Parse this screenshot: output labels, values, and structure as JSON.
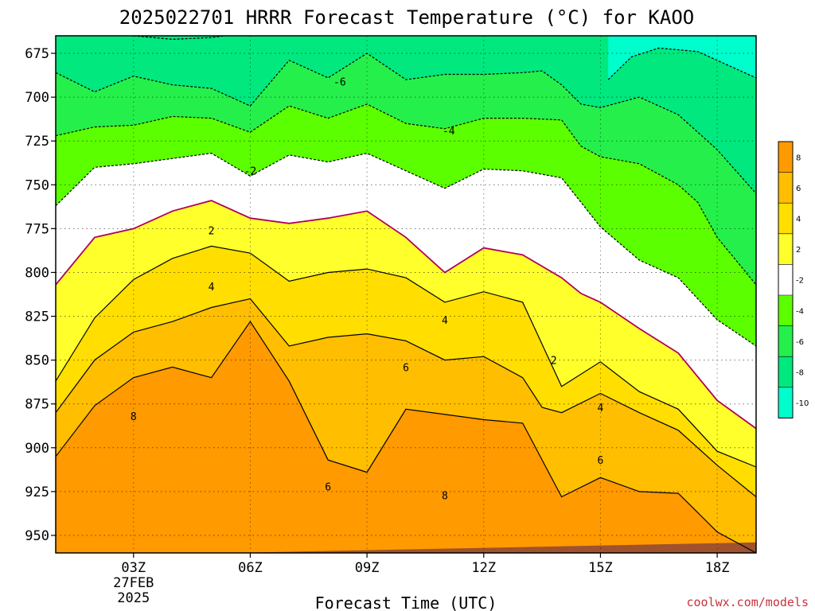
{
  "chart_data": {
    "type": "heatmap",
    "title": "2025022701 HRRR Forecast Temperature (°C) for KAOO",
    "xlabel": "Forecast Time (UTC)",
    "ylabel": "",
    "x_unit": "UTC hour",
    "xlim": [
      1,
      19
    ],
    "ylim_hPa": [
      960,
      665
    ],
    "y_scale": "pressure (inverted)",
    "x_ticks": [
      {
        "x": 3,
        "label": "03Z",
        "sub": [
          "27FEB",
          "2025"
        ]
      },
      {
        "x": 6,
        "label": "06Z"
      },
      {
        "x": 9,
        "label": "09Z"
      },
      {
        "x": 12,
        "label": "12Z"
      },
      {
        "x": 15,
        "label": "15Z"
      },
      {
        "x": 18,
        "label": "18Z"
      }
    ],
    "y_ticks": [
      675,
      700,
      725,
      750,
      775,
      800,
      825,
      850,
      875,
      900,
      925,
      950
    ],
    "grid": true,
    "contour_levels": [
      -10,
      -8,
      -6,
      -4,
      -2,
      2,
      4,
      6,
      8
    ],
    "isotherms": [
      {
        "level": -10,
        "points": [
          [
            15.2,
            690
          ],
          [
            15.8,
            677
          ],
          [
            16.5,
            672
          ],
          [
            17.5,
            674
          ],
          [
            18.5,
            684
          ],
          [
            19,
            689
          ]
        ]
      },
      {
        "level": -8,
        "points": [
          [
            3,
            665
          ],
          [
            4,
            667
          ],
          [
            5,
            666
          ],
          [
            6,
            663
          ]
        ]
      },
      {
        "level": -6,
        "points": [
          [
            1,
            686
          ],
          [
            2,
            697
          ],
          [
            3,
            688
          ],
          [
            4,
            693
          ],
          [
            5,
            695
          ],
          [
            6,
            705
          ],
          [
            7,
            679
          ],
          [
            8,
            689
          ],
          [
            9,
            675
          ],
          [
            10,
            690
          ],
          [
            11,
            687
          ],
          [
            12,
            687
          ],
          [
            13,
            686
          ],
          [
            13.5,
            685
          ],
          [
            14,
            693
          ],
          [
            14.5,
            704
          ],
          [
            15,
            706
          ],
          [
            16,
            700
          ],
          [
            17,
            710
          ],
          [
            18,
            730
          ],
          [
            19,
            755
          ]
        ]
      },
      {
        "level": -4,
        "points": [
          [
            1,
            722
          ],
          [
            2,
            717
          ],
          [
            3,
            716
          ],
          [
            4,
            711
          ],
          [
            5,
            712
          ],
          [
            6,
            720
          ],
          [
            7,
            705
          ],
          [
            8,
            712
          ],
          [
            9,
            704
          ],
          [
            10,
            715
          ],
          [
            11,
            718
          ],
          [
            12,
            712
          ],
          [
            13,
            712
          ],
          [
            14,
            713
          ],
          [
            14.5,
            728
          ],
          [
            15,
            734
          ],
          [
            16,
            738
          ],
          [
            17,
            750
          ],
          [
            17.5,
            760
          ],
          [
            18,
            780
          ],
          [
            19,
            807
          ]
        ]
      },
      {
        "level": -2,
        "points": [
          [
            1,
            762
          ],
          [
            2,
            740
          ],
          [
            3,
            738
          ],
          [
            4,
            735
          ],
          [
            5,
            732
          ],
          [
            6,
            745
          ],
          [
            7,
            733
          ],
          [
            8,
            737
          ],
          [
            9,
            732
          ],
          [
            10,
            742
          ],
          [
            11,
            752
          ],
          [
            12,
            741
          ],
          [
            13,
            742
          ],
          [
            14,
            746
          ],
          [
            15,
            774
          ],
          [
            16,
            793
          ],
          [
            17,
            803
          ],
          [
            18,
            827
          ],
          [
            19,
            842
          ]
        ]
      },
      {
        "level": 2,
        "points": [
          [
            1,
            807
          ],
          [
            2,
            780
          ],
          [
            3,
            775
          ],
          [
            4,
            765
          ],
          [
            5,
            759
          ],
          [
            6,
            769
          ],
          [
            7,
            772
          ],
          [
            8,
            769
          ],
          [
            9,
            765
          ],
          [
            10,
            780
          ],
          [
            11,
            800
          ],
          [
            12,
            786
          ],
          [
            13,
            790
          ],
          [
            14,
            803
          ],
          [
            14.5,
            812
          ],
          [
            15,
            817
          ],
          [
            16,
            832
          ],
          [
            17,
            846
          ],
          [
            18,
            873
          ],
          [
            19,
            889
          ]
        ]
      },
      {
        "level": 4,
        "points": [
          [
            1,
            862
          ],
          [
            2,
            826
          ],
          [
            3,
            804
          ],
          [
            4,
            792
          ],
          [
            5,
            785
          ],
          [
            6,
            789
          ],
          [
            7,
            805
          ],
          [
            8,
            800
          ],
          [
            9,
            798
          ],
          [
            10,
            803
          ],
          [
            11,
            817
          ],
          [
            12,
            811
          ],
          [
            13,
            817
          ],
          [
            14,
            865
          ],
          [
            15,
            851
          ],
          [
            16,
            868
          ],
          [
            17,
            878
          ],
          [
            18,
            902
          ],
          [
            19,
            911
          ]
        ]
      },
      {
        "level": 6,
        "points": [
          [
            1,
            880
          ],
          [
            2,
            850
          ],
          [
            3,
            834
          ],
          [
            4,
            828
          ],
          [
            5,
            820
          ],
          [
            6,
            815
          ],
          [
            7,
            842
          ],
          [
            8,
            837
          ],
          [
            9,
            835
          ],
          [
            10,
            839
          ],
          [
            11,
            850
          ],
          [
            12,
            848
          ],
          [
            13,
            860
          ],
          [
            13.5,
            877
          ],
          [
            14,
            880
          ],
          [
            15,
            869
          ],
          [
            16,
            880
          ],
          [
            17,
            890
          ],
          [
            18,
            910
          ],
          [
            19,
            928
          ]
        ]
      },
      {
        "level": 8,
        "points": [
          [
            1,
            905
          ],
          [
            2,
            876
          ],
          [
            3,
            860
          ],
          [
            4,
            854
          ],
          [
            5,
            860
          ],
          [
            6,
            828
          ],
          [
            7,
            862
          ],
          [
            8,
            907
          ],
          [
            9,
            914
          ],
          [
            10,
            878
          ],
          [
            11,
            881
          ],
          [
            12,
            884
          ],
          [
            13,
            886
          ],
          [
            14,
            928
          ],
          [
            15,
            917
          ],
          [
            16,
            925
          ],
          [
            17,
            926
          ],
          [
            17.5,
            937
          ],
          [
            18,
            948
          ],
          [
            19,
            960
          ]
        ]
      }
    ],
    "inline_labels": [
      {
        "text": "-6",
        "x": 8.3,
        "y": 691
      },
      {
        "text": "-4",
        "x": 11.1,
        "y": 719
      },
      {
        "text": "-2",
        "x": 6.0,
        "y": 742
      },
      {
        "text": "2",
        "x": 5.0,
        "y": 776
      },
      {
        "text": "4",
        "x": 5.0,
        "y": 808
      },
      {
        "text": "4",
        "x": 11.0,
        "y": 827
      },
      {
        "text": "2",
        "x": 13.8,
        "y": 850
      },
      {
        "text": "4",
        "x": 15.0,
        "y": 877
      },
      {
        "text": "6",
        "x": 10.0,
        "y": 854
      },
      {
        "text": "6",
        "x": 15.0,
        "y": 907
      },
      {
        "text": "6",
        "x": 8.0,
        "y": 922
      },
      {
        "text": "8",
        "x": 3.0,
        "y": 882
      },
      {
        "text": "8",
        "x": 11.0,
        "y": 927
      }
    ],
    "legend": {
      "placement": "right",
      "labels": [
        "8",
        "6",
        "4",
        "2",
        "-2",
        "-4",
        "-6",
        "-8",
        "-10"
      ],
      "colors": [
        "#ff9a00",
        "#ffbe00",
        "#ffde00",
        "#ffff2c",
        "#ffffff",
        "#5cff00",
        "#25f04b",
        "#00e87e",
        "#00fdcc"
      ]
    },
    "fill_colors": {
      "lt_-10": "#00fdcc",
      "-10_-8": "#00e87e",
      "-8_-6": "#00e87e",
      "-6_-4": "#25f04b",
      "-4_-2": "#5cff00",
      "-2_2": "#ffffff",
      "2_4": "#ffff2c",
      "4_6": "#ffde00",
      "6_8": "#ffbe00",
      "gt_8": "#ff9a00",
      "ground": "#a0522d"
    },
    "ground_level": [
      [
        1,
        962
      ],
      [
        19,
        954
      ]
    ],
    "credit": "coolwx.com/models"
  }
}
